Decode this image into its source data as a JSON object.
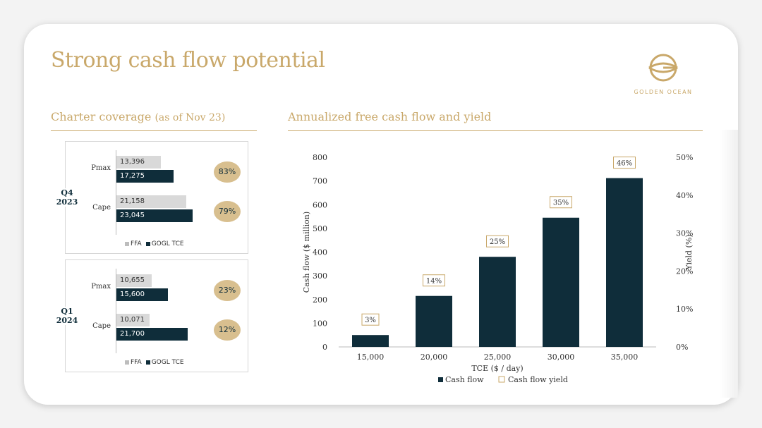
{
  "title": "Strong cash flow potential",
  "logo": {
    "name": "GOLDEN OCEAN"
  },
  "coverage": {
    "title": "Charter coverage",
    "subtitle": "(as of Nov 23)",
    "panels": [
      {
        "quarter_line1": "Q4",
        "quarter_line2": "2023",
        "rows": [
          {
            "label": "Pmax",
            "ffa": 13396,
            "ffa_label": "13,396",
            "gogl": 17275,
            "gogl_label": "17,275",
            "coverage": "83%"
          },
          {
            "label": "Cape",
            "ffa": 21158,
            "ffa_label": "21,158",
            "gogl": 23045,
            "gogl_label": "23,045",
            "coverage": "79%"
          }
        ],
        "legend": {
          "ffa": "FFA",
          "gogl": "GOGL TCE"
        }
      },
      {
        "quarter_line1": "Q1",
        "quarter_line2": "2024",
        "rows": [
          {
            "label": "Pmax",
            "ffa": 10655,
            "ffa_label": "10,655",
            "gogl": 15600,
            "gogl_label": "15,600",
            "coverage": "23%"
          },
          {
            "label": "Cape",
            "ffa": 10071,
            "ffa_label": "10,071",
            "gogl": 21700,
            "gogl_label": "21,700",
            "coverage": "12%"
          }
        ],
        "legend": {
          "ffa": "FFA",
          "gogl": "GOGL TCE"
        }
      }
    ]
  },
  "cashflow": {
    "title": "Annualized free cash flow and yield"
  },
  "colors": {
    "gold": "#c9a86a",
    "navy": "#0f2d3a",
    "ffa_gray": "#d9d9d9",
    "badge": "#d8bf8f"
  },
  "chart_data": {
    "type": "bar",
    "categories": [
      "15,000",
      "20,000",
      "25,000",
      "30,000",
      "35,000"
    ],
    "series": [
      {
        "name": "Cash flow",
        "values": [
          50,
          215,
          380,
          545,
          712
        ]
      },
      {
        "name": "Cash flow yield",
        "values": [
          3,
          14,
          25,
          35,
          46
        ]
      }
    ],
    "yield_labels": [
      "3%",
      "14%",
      "25%",
      "35%",
      "46%"
    ],
    "xlabel": "TCE ($ / day)",
    "ylabel": "Cash flow ($ million)",
    "y2label": "Yield (%)",
    "ylim": [
      0,
      800
    ],
    "y2lim": [
      0,
      50
    ],
    "yticks": [
      "0",
      "100",
      "200",
      "300",
      "400",
      "500",
      "600",
      "700",
      "800"
    ],
    "y2ticks": [
      "0%",
      "10%",
      "20%",
      "30%",
      "40%",
      "50%"
    ],
    "legend": "bottom-center",
    "grid": false
  }
}
